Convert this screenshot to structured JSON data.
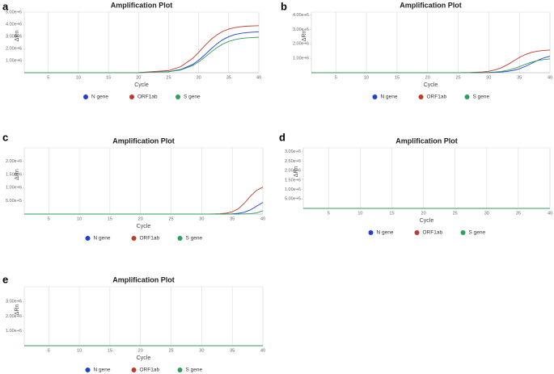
{
  "chart_data": [
    {
      "type": "line",
      "panel": "a",
      "title": "Amplification Plot",
      "x_label": "Cycle",
      "y_label": "ΔRn",
      "x": [
        1,
        5,
        10,
        15,
        20,
        25,
        27,
        29,
        30,
        31,
        32,
        33,
        34,
        35,
        36,
        37,
        38,
        39,
        40
      ],
      "xlim": [
        1,
        40
      ],
      "xticks": [
        5,
        10,
        15,
        20,
        25,
        30,
        35,
        40
      ],
      "ylim": [
        0,
        5000000
      ],
      "yticks": [
        {
          "value": 1000000,
          "label": "1.00e+6"
        },
        {
          "value": 2000000,
          "label": "2.00e+6"
        },
        {
          "value": 3000000,
          "label": "3.00e+6"
        },
        {
          "value": 4000000,
          "label": "4.00e+6"
        },
        {
          "value": 5000000,
          "label": "5.00e+6"
        }
      ],
      "grid": true,
      "series": [
        {
          "name": "N gene",
          "color": "#1f3fd6",
          "values": [
            0,
            0,
            0,
            0,
            6000,
            89000,
            258000,
            679000,
            1030000,
            1466000,
            1934000,
            2370000,
            2721000,
            2972000,
            3142000,
            3247000,
            3311000,
            3349000,
            3370000
          ]
        },
        {
          "name": "ORF1ab",
          "color": "#c0392b",
          "values": [
            0,
            0,
            0,
            0,
            11000,
            175000,
            491000,
            1182000,
            1681000,
            2219000,
            2718000,
            3120000,
            3409000,
            3604000,
            3725000,
            3799000,
            3842000,
            3865000,
            3880000
          ]
        },
        {
          "name": "S gene",
          "color": "#2e9e5b",
          "values": [
            0,
            0,
            0,
            0,
            5000,
            77000,
            224000,
            589000,
            894000,
            1272000,
            1679000,
            2057000,
            2362000,
            2580000,
            2727000,
            2818000,
            2874000,
            2907000,
            2925000
          ]
        }
      ]
    },
    {
      "type": "line",
      "panel": "b",
      "title": "Amplification Plot",
      "x_label": "Cycle",
      "y_label": "ΔRn",
      "x": [
        1,
        5,
        10,
        15,
        20,
        25,
        27,
        29,
        30,
        31,
        32,
        33,
        34,
        35,
        36,
        37,
        38,
        39,
        40
      ],
      "xlim": [
        1,
        40
      ],
      "xticks": [
        5,
        10,
        15,
        20,
        25,
        30,
        35,
        40
      ],
      "ylim": [
        0,
        4200000
      ],
      "yticks": [
        {
          "value": 1000000,
          "label": "1.00e+6"
        },
        {
          "value": 2000000,
          "label": "2.00e+6"
        },
        {
          "value": 3000000,
          "label": "3.00e+6"
        },
        {
          "value": 4000000,
          "label": "4.00e+6"
        }
      ],
      "grid": true,
      "series": [
        {
          "name": "N gene",
          "color": "#1f3fd6",
          "values": [
            0,
            0,
            0,
            0,
            0,
            0,
            0,
            6000,
            12000,
            23000,
            45000,
            85000,
            155000,
            272000,
            441000,
            650000,
            859000,
            1028000,
            1145000
          ]
        },
        {
          "name": "ORF1ab",
          "color": "#c0392b",
          "values": [
            0,
            0,
            0,
            0,
            0,
            4000,
            15000,
            55000,
            104000,
            190000,
            334000,
            542000,
            800000,
            1058000,
            1266000,
            1410000,
            1496000,
            1546000,
            1571000
          ]
        },
        {
          "name": "S gene",
          "color": "#2e9e5b",
          "values": [
            0,
            0,
            0,
            0,
            0,
            0,
            3000,
            13000,
            25000,
            47000,
            89000,
            159000,
            269000,
            417000,
            583000,
            731000,
            841000,
            911000,
            953000
          ]
        }
      ]
    },
    {
      "type": "line",
      "panel": "c",
      "title": "Amplification Plot",
      "x_label": "Cycle",
      "y_label": "ΔRn",
      "x": [
        1,
        5,
        10,
        15,
        20,
        25,
        27,
        29,
        30,
        31,
        32,
        33,
        34,
        35,
        36,
        37,
        38,
        39,
        40
      ],
      "xlim": [
        1,
        40
      ],
      "xticks": [
        5,
        10,
        15,
        20,
        25,
        30,
        35,
        40
      ],
      "ylim": [
        0,
        2500000
      ],
      "yticks": [
        {
          "value": 500000,
          "label": "5.00e+5"
        },
        {
          "value": 1000000,
          "label": "1.00e+6"
        },
        {
          "value": 1500000,
          "label": "1.50e+6"
        },
        {
          "value": 2000000,
          "label": "2.00e+6"
        }
      ],
      "grid": true,
      "series": [
        {
          "name": "N gene",
          "color": "#1f3fd6",
          "values": [
            0,
            0,
            0,
            0,
            0,
            0,
            0,
            0,
            0,
            0,
            0,
            0,
            4000,
            11000,
            28000,
            71000,
            161000,
            300000,
            439000
          ]
        },
        {
          "name": "ORF1ab",
          "color": "#c0392b",
          "values": [
            0,
            0,
            0,
            0,
            0,
            0,
            0,
            0,
            0,
            0,
            4000,
            12000,
            32000,
            84000,
            200000,
            416000,
            684000,
            900000,
            1016000
          ]
        },
        {
          "name": "S gene",
          "color": "#2e9e5b",
          "values": [
            0,
            0,
            0,
            0,
            0,
            0,
            0,
            0,
            0,
            0,
            0,
            0,
            0,
            0,
            0,
            6000,
            16000,
            44000,
            120000
          ]
        }
      ]
    },
    {
      "type": "line",
      "panel": "d",
      "title": "Amplification Plot",
      "x_label": "Cycle",
      "y_label": "ΔRn",
      "x": [
        1,
        5,
        10,
        15,
        20,
        25,
        30,
        35,
        40
      ],
      "xlim": [
        1,
        40
      ],
      "xticks": [
        5,
        10,
        15,
        20,
        25,
        30,
        35,
        40
      ],
      "ylim": [
        0,
        3200000
      ],
      "yticks": [
        {
          "value": 500000,
          "label": "5.00e+5"
        },
        {
          "value": 1000000,
          "label": "1.00e+6"
        },
        {
          "value": 1500000,
          "label": "1.50e+6"
        },
        {
          "value": 2000000,
          "label": "2.00e+6"
        },
        {
          "value": 2500000,
          "label": "2.50e+6"
        },
        {
          "value": 3000000,
          "label": "3.00e+6"
        }
      ],
      "grid": true,
      "series": [
        {
          "name": "N gene",
          "color": "#1f3fd6",
          "values": [
            0,
            0,
            0,
            0,
            0,
            0,
            0,
            0,
            0
          ]
        },
        {
          "name": "ORF1ab",
          "color": "#c0392b",
          "values": [
            0,
            0,
            0,
            0,
            0,
            0,
            0,
            0,
            0
          ]
        },
        {
          "name": "S gene",
          "color": "#2e9e5b",
          "values": [
            0,
            0,
            0,
            0,
            0,
            0,
            0,
            0,
            0
          ]
        }
      ]
    },
    {
      "type": "line",
      "panel": "e",
      "title": "Amplification Plot",
      "x_label": "Cycle",
      "y_label": "ΔRn",
      "x": [
        1,
        5,
        10,
        15,
        20,
        25,
        30,
        35,
        40
      ],
      "xlim": [
        1,
        40
      ],
      "xticks": [
        5,
        10,
        15,
        20,
        25,
        30,
        35,
        40
      ],
      "ylim": [
        0,
        4000000
      ],
      "yticks": [
        {
          "value": 1000000,
          "label": "1.00e+6"
        },
        {
          "value": 2000000,
          "label": "2.00e+6"
        },
        {
          "value": 3000000,
          "label": "3.00e+6"
        }
      ],
      "grid": true,
      "series": [
        {
          "name": "N gene",
          "color": "#1f3fd6",
          "values": [
            0,
            0,
            0,
            0,
            0,
            0,
            0,
            0,
            0
          ]
        },
        {
          "name": "ORF1ab",
          "color": "#c0392b",
          "values": [
            0,
            0,
            0,
            0,
            0,
            0,
            0,
            0,
            0
          ]
        },
        {
          "name": "S gene",
          "color": "#2e9e5b",
          "values": [
            0,
            0,
            0,
            0,
            0,
            0,
            0,
            0,
            0
          ]
        }
      ]
    }
  ]
}
